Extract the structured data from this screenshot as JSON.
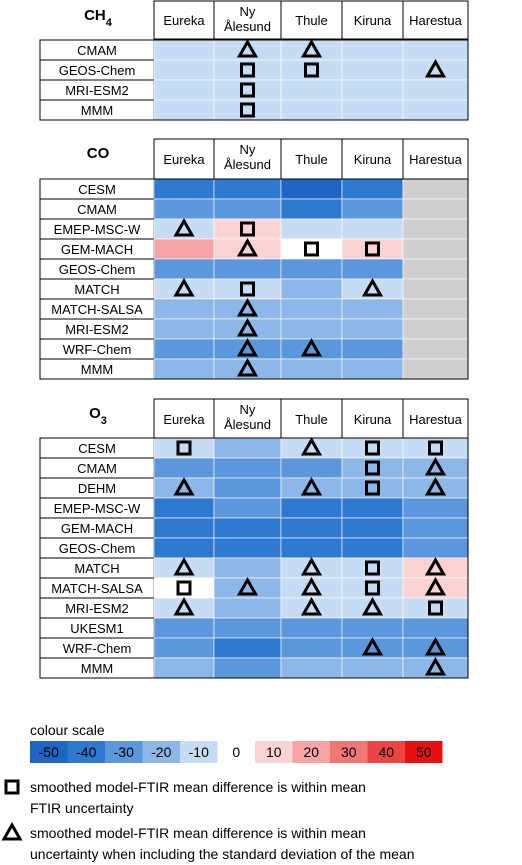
{
  "colour_scale": {
    "title": "colour scale",
    "ticks": [
      "-50",
      "-40",
      "-30",
      "-20",
      "-10",
      "0",
      "10",
      "20",
      "30",
      "40",
      "50"
    ],
    "colors": [
      "#1f63c3",
      "#2f78cf",
      "#5b97da",
      "#8db7e6",
      "#c6dcf2",
      "#ffffff",
      "#fbd3d3",
      "#f7a6a6",
      "#f17676",
      "#ec4444",
      "#e61010"
    ]
  },
  "legend": {
    "square_text_line1": "smoothed model-FTIR mean difference is within mean",
    "square_text_line2": "FTIR uncertainty",
    "triangle_text_line1": "smoothed model-FTIR mean difference is within mean",
    "triangle_text_line2": "uncertainty when including the standard deviation of the mean"
  },
  "chart_data": [
    {
      "type": "heatmap",
      "title": "CH4",
      "title_main": "CH",
      "title_sub": "4",
      "columns": [
        "Eureka",
        "Ny Ålesund",
        "Thule",
        "Kiruna",
        "Harestua"
      ],
      "rows": [
        "CMAM",
        "GEOS-Chem",
        "MRI-ESM2",
        "MMM"
      ],
      "values": [
        [
          -10,
          -10,
          -10,
          -10,
          -10
        ],
        [
          -10,
          -10,
          -10,
          -10,
          -10
        ],
        [
          -10,
          -10,
          -10,
          -10,
          -10
        ],
        [
          -10,
          -10,
          -10,
          -10,
          -10
        ]
      ],
      "markers": [
        [
          "",
          "triangle",
          "triangle",
          "",
          ""
        ],
        [
          "",
          "square",
          "square",
          "",
          "triangle"
        ],
        [
          "",
          "square",
          "",
          "",
          ""
        ],
        [
          "",
          "square",
          "",
          "",
          ""
        ]
      ]
    },
    {
      "type": "heatmap",
      "title": "CO",
      "title_main": "CO",
      "title_sub": "",
      "columns": [
        "Eureka",
        "Ny Ålesund",
        "Thule",
        "Kiruna",
        "Harestua"
      ],
      "rows": [
        "CESM",
        "CMAM",
        "EMEP-MSC-W",
        "GEM-MACH",
        "GEOS-Chem",
        "MATCH",
        "MATCH-SALSA",
        "MRI-ESM2",
        "WRF-Chem",
        "MMM"
      ],
      "values": [
        [
          -40,
          -40,
          -50,
          -40,
          null
        ],
        [
          -30,
          -30,
          -40,
          -30,
          null
        ],
        [
          -10,
          10,
          -10,
          -10,
          null
        ],
        [
          20,
          10,
          0,
          10,
          null
        ],
        [
          -30,
          -30,
          -30,
          -30,
          null
        ],
        [
          -10,
          -10,
          -20,
          -10,
          null
        ],
        [
          -20,
          -20,
          -20,
          -20,
          null
        ],
        [
          -20,
          -20,
          -20,
          -20,
          null
        ],
        [
          -30,
          -30,
          -30,
          -30,
          null
        ],
        [
          -20,
          -20,
          -20,
          -20,
          null
        ]
      ],
      "markers": [
        [
          "",
          "",
          "",
          "",
          ""
        ],
        [
          "",
          "",
          "",
          "",
          ""
        ],
        [
          "triangle",
          "square",
          "",
          "",
          ""
        ],
        [
          "",
          "triangle",
          "square",
          "square",
          ""
        ],
        [
          "",
          "",
          "",
          "",
          ""
        ],
        [
          "triangle",
          "square",
          "",
          "triangle",
          ""
        ],
        [
          "",
          "triangle",
          "",
          "",
          ""
        ],
        [
          "",
          "triangle",
          "",
          "",
          ""
        ],
        [
          "",
          "triangle",
          "triangle",
          "",
          ""
        ],
        [
          "",
          "triangle",
          "",
          "",
          ""
        ]
      ]
    },
    {
      "type": "heatmap",
      "title": "O3",
      "title_main": "O",
      "title_sub": "3",
      "columns": [
        "Eureka",
        "Ny Ålesund",
        "Thule",
        "Kiruna",
        "Harestua"
      ],
      "rows": [
        "CESM",
        "CMAM",
        "DEHM",
        "EMEP-MSC-W",
        "GEM-MACH",
        "GEOS-Chem",
        "MATCH",
        "MATCH-SALSA",
        "MRI-ESM2",
        "UKESM1",
        "WRF-Chem",
        "MMM"
      ],
      "values": [
        [
          -10,
          -20,
          -10,
          -10,
          -10
        ],
        [
          -30,
          -30,
          -30,
          -20,
          -20
        ],
        [
          -20,
          -30,
          -20,
          -20,
          -20
        ],
        [
          -40,
          -30,
          -40,
          -40,
          -30
        ],
        [
          -40,
          -40,
          -40,
          -40,
          -30
        ],
        [
          -40,
          -40,
          -40,
          -40,
          -30
        ],
        [
          -10,
          -20,
          -10,
          -10,
          10
        ],
        [
          0,
          -20,
          -10,
          -10,
          10
        ],
        [
          -10,
          -20,
          -10,
          -10,
          -10
        ],
        [
          -30,
          -30,
          -30,
          -30,
          -30
        ],
        [
          -30,
          -40,
          -30,
          -30,
          -30
        ],
        [
          -20,
          -30,
          -20,
          -20,
          -20
        ]
      ],
      "markers": [
        [
          "square",
          "",
          "triangle",
          "square",
          "square"
        ],
        [
          "",
          "",
          "",
          "square",
          "triangle"
        ],
        [
          "triangle",
          "",
          "triangle",
          "square",
          "triangle"
        ],
        [
          "",
          "",
          "",
          "",
          ""
        ],
        [
          "",
          "",
          "",
          "",
          ""
        ],
        [
          "",
          "",
          "",
          "",
          ""
        ],
        [
          "triangle",
          "",
          "triangle",
          "square",
          "triangle"
        ],
        [
          "square",
          "triangle",
          "triangle",
          "square",
          "triangle"
        ],
        [
          "triangle",
          "",
          "triangle",
          "triangle",
          "square"
        ],
        [
          "",
          "",
          "",
          "",
          ""
        ],
        [
          "",
          "",
          "",
          "triangle",
          "triangle"
        ],
        [
          "",
          "",
          "",
          "",
          "triangle"
        ]
      ]
    }
  ]
}
